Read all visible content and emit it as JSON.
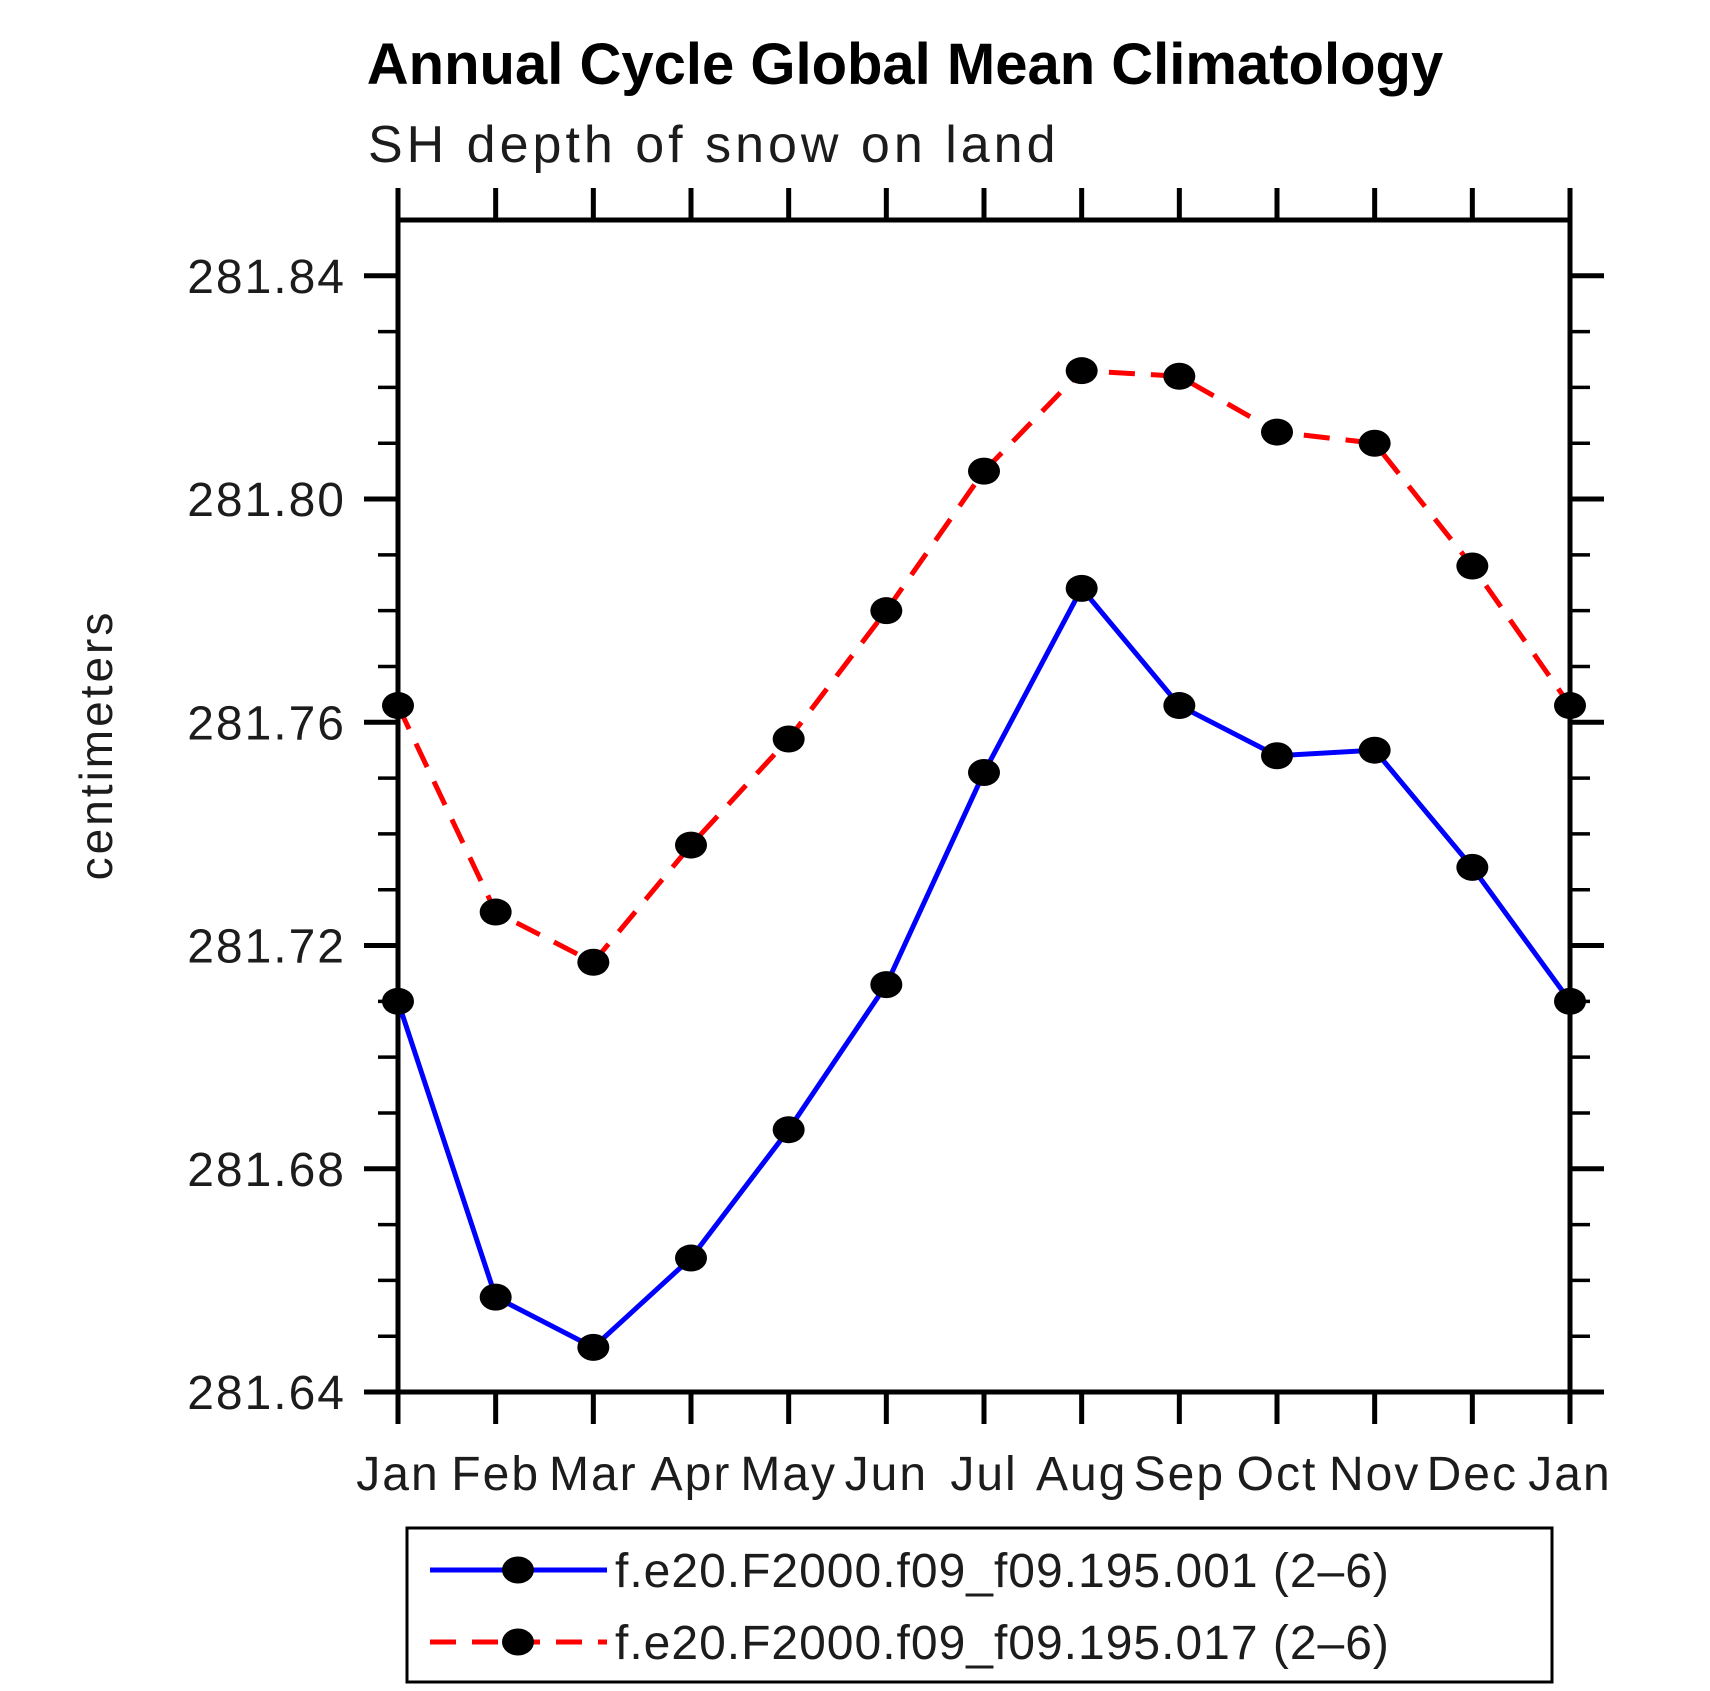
{
  "title": "Annual Cycle Global Mean Climatology",
  "subtitle": "SH depth of snow on land",
  "ylabel": "centimeters",
  "chart_data": {
    "type": "line",
    "categories": [
      "Jan",
      "Feb",
      "Mar",
      "Apr",
      "May",
      "Jun",
      "Jul",
      "Aug",
      "Sep",
      "Oct",
      "Nov",
      "Dec",
      "Jan"
    ],
    "series": [
      {
        "name": "f.e20.F2000.f09_f09.195.001 (2–6)",
        "color": "#0000ff",
        "style": "solid",
        "marker": "filled-circle",
        "marker_color": "#000000",
        "values": [
          281.71,
          281.657,
          281.648,
          281.664,
          281.687,
          281.713,
          281.751,
          281.784,
          281.763,
          281.754,
          281.755,
          281.734,
          281.71
        ]
      },
      {
        "name": "f.e20.F2000.f09_f09.195.017 (2–6)",
        "color": "#ff0000",
        "style": "dashed",
        "marker": "filled-circle",
        "marker_color": "#000000",
        "values": [
          281.763,
          281.726,
          281.717,
          281.738,
          281.757,
          281.78,
          281.805,
          281.823,
          281.822,
          281.812,
          281.81,
          281.788,
          281.763
        ]
      }
    ],
    "ylim": [
      281.64,
      281.85
    ],
    "ytick_major_step": 0.04,
    "ytick_minor_step": 0.01,
    "ytick_labels": [
      "281.64",
      "281.68",
      "281.72",
      "281.76",
      "281.80",
      "281.84"
    ],
    "xlabel": "",
    "grid": false,
    "legend_position": "bottom",
    "axis_color": "#000000",
    "text_color": "#1c1c1c"
  }
}
